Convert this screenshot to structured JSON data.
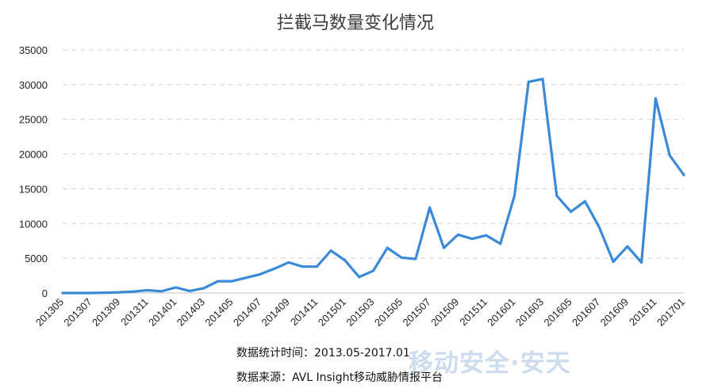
{
  "chart_data": {
    "type": "line",
    "title": "拦截马数量变化情况",
    "xlabel": "",
    "ylabel": "",
    "ylim": [
      0,
      35000
    ],
    "yticks": [
      0,
      5000,
      10000,
      15000,
      20000,
      25000,
      30000,
      35000
    ],
    "grid": true,
    "legend": "none",
    "x_tick_labels": [
      "201305",
      "201307",
      "201309",
      "201311",
      "201401",
      "201403",
      "201405",
      "201407",
      "201409",
      "201411",
      "201501",
      "201503",
      "201505",
      "201507",
      "201509",
      "201511",
      "201601",
      "201603",
      "201605",
      "201607",
      "201609",
      "201611",
      "201701"
    ],
    "categories": [
      "201305",
      "201306",
      "201307",
      "201308",
      "201309",
      "201310",
      "201311",
      "201312",
      "201401",
      "201402",
      "201403",
      "201404",
      "201405",
      "201406",
      "201407",
      "201408",
      "201409",
      "201410",
      "201411",
      "201412",
      "201501",
      "201502",
      "201503",
      "201504",
      "201505",
      "201506",
      "201507",
      "201508",
      "201509",
      "201510",
      "201511",
      "201512",
      "201601",
      "201602",
      "201603",
      "201604",
      "201605",
      "201606",
      "201607",
      "201608",
      "201609",
      "201610",
      "201611",
      "201612",
      "201701"
    ],
    "series": [
      {
        "color": "#3a8ad8",
        "values": [
          0,
          0,
          0,
          50,
          100,
          200,
          400,
          250,
          800,
          300,
          700,
          1700,
          1700,
          2200,
          2700,
          3500,
          4400,
          3800,
          3800,
          6100,
          4700,
          2300,
          3200,
          6500,
          5100,
          4900,
          12300,
          6500,
          8400,
          7800,
          8300,
          7100,
          14000,
          30400,
          30800,
          14000,
          11700,
          13200,
          9500,
          4500,
          6700,
          4400,
          28000,
          19800,
          17000
        ]
      }
    ]
  },
  "notes": {
    "line1": "数据统计时间：2013.05-2017.01",
    "line2": "数据来源：AVL Insight移动威胁情报平台"
  },
  "watermark": "移动安全·安天"
}
